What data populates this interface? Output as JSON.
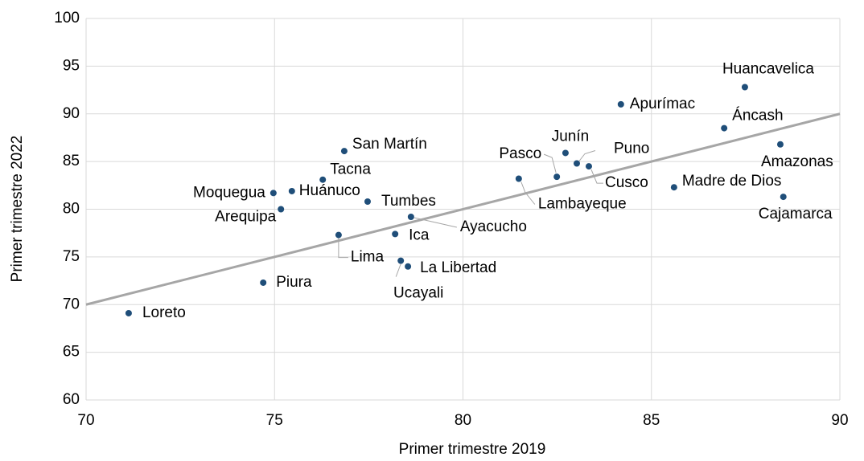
{
  "chart_data": {
    "type": "scatter",
    "x_label": "Primer trimestre 2019",
    "y_label": "Primer trimestre 2022",
    "xlim": [
      70,
      90
    ],
    "xticks": [
      70,
      75,
      80,
      85,
      90
    ],
    "ylim": [
      60,
      100
    ],
    "yticks": [
      60,
      65,
      70,
      75,
      80,
      85,
      90,
      95,
      100
    ],
    "grid": true,
    "color": "#1f4e79",
    "trend_line": {
      "x": [
        70,
        90
      ],
      "y": [
        70,
        90
      ],
      "color": "#a6a6a6"
    },
    "labels": [
      "Loreto",
      "Piura",
      "Moquegua",
      "Arequipa",
      "Huánuco",
      "Tacna",
      "San Martín",
      "Lima",
      "Tumbes",
      "Ica",
      "Ayacucho",
      "Ucayali",
      "La Libertad",
      "Lambayeque",
      "Pasco",
      "Junín",
      "Puno",
      "Cusco",
      "Apurímac",
      "Madre de Dios",
      "Áncash",
      "Huancavelica",
      "Amazonas",
      "Cajamarca"
    ],
    "x": [
      71.13,
      74.7,
      74.97,
      75.17,
      75.46,
      76.28,
      76.85,
      76.7,
      77.47,
      78.2,
      78.62,
      78.35,
      78.54,
      81.48,
      82.49,
      82.72,
      83.02,
      83.34,
      84.19,
      85.6,
      86.93,
      87.48,
      88.42,
      88.5
    ],
    "values": [
      69.1,
      72.3,
      81.7,
      80.0,
      81.9,
      83.1,
      86.1,
      77.3,
      80.8,
      77.4,
      79.2,
      74.6,
      74.0,
      83.2,
      83.4,
      85.9,
      84.8,
      84.5,
      91.0,
      82.3,
      88.5,
      92.8,
      86.8,
      81.3
    ]
  }
}
